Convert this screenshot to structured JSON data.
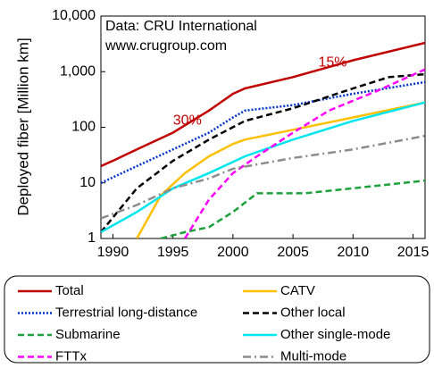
{
  "chart_data": {
    "type": "line",
    "y_label": "Deployed fiber [Million  km]",
    "source_note": [
      "Data: CRU International",
      "www.crugroup.com"
    ],
    "annotations": [
      {
        "text": "30%",
        "x": 1996.2,
        "y": 130
      },
      {
        "text": "15%",
        "x": 2008.3,
        "y": 1450
      }
    ],
    "annotation_color": "#c00000",
    "yscale": "log",
    "xlim": [
      1989,
      2016
    ],
    "ylim": [
      1,
      10000
    ],
    "xticks": [
      1990,
      1995,
      2000,
      2005,
      2010,
      2015
    ],
    "yticks": [
      1,
      10,
      100,
      {
        "value": 1000,
        "label": "1,000"
      },
      {
        "value": 10000,
        "label": "10,000"
      }
    ],
    "grid": false,
    "legend_position": "bottom",
    "series": [
      {
        "name": "Total",
        "color": "#c00000",
        "dash": "solid",
        "x": [
          1989,
          1990,
          1992,
          1995,
          1998,
          2000,
          2001,
          2005,
          2010,
          2016
        ],
        "values": [
          20,
          25,
          40,
          80,
          200,
          400,
          500,
          800,
          1600,
          3300
        ]
      },
      {
        "name": "CATV",
        "color": "#ffc000",
        "dash": "solid",
        "x": [
          1992,
          1994,
          1996,
          1998,
          2000,
          2001,
          2005,
          2010,
          2016
        ],
        "values": [
          1,
          6,
          15,
          30,
          50,
          60,
          90,
          150,
          280
        ]
      },
      {
        "name": "Terrestrial long-distance",
        "color": "#0033cc",
        "dash": "dotted",
        "x": [
          1989,
          1992,
          1995,
          1998,
          2000,
          2001,
          2005,
          2010,
          2016
        ],
        "values": [
          10,
          20,
          40,
          80,
          150,
          200,
          250,
          400,
          650
        ]
      },
      {
        "name": "Other local",
        "color": "#000000",
        "dash": "dashed",
        "x": [
          1989,
          1992,
          1995,
          1998,
          2001,
          2005,
          2010,
          2013,
          2016
        ],
        "values": [
          1.3,
          8,
          25,
          60,
          130,
          220,
          500,
          800,
          900
        ]
      },
      {
        "name": "Submarine",
        "color": "#1ea03c",
        "dash": "dashed",
        "x": [
          1994,
          1996,
          1998,
          2000,
          2002,
          2006,
          2010,
          2016
        ],
        "values": [
          1,
          1.3,
          1.6,
          3,
          6.5,
          6.5,
          8,
          11
        ]
      },
      {
        "name": "Other single-mode",
        "color": "#00e5ee",
        "dash": "solid",
        "x": [
          1989,
          1992,
          1995,
          1998,
          2001,
          2005,
          2010,
          2016
        ],
        "values": [
          1.3,
          3,
          8,
          15,
          30,
          60,
          130,
          280
        ]
      },
      {
        "name": "FTTx",
        "color": "#ff00ff",
        "dash": "dashed",
        "x": [
          1996,
          1998,
          2000,
          2002,
          2005,
          2008,
          2012,
          2016
        ],
        "values": [
          1,
          5,
          15,
          30,
          80,
          200,
          450,
          1100
        ]
      },
      {
        "name": "Multi-mode",
        "color": "#8c8c8c",
        "dash": "dashdot",
        "x": [
          1989,
          1992,
          1995,
          1998,
          2000,
          2005,
          2010,
          2016
        ],
        "values": [
          2.3,
          4,
          8,
          12,
          18,
          28,
          40,
          70
        ]
      }
    ]
  }
}
